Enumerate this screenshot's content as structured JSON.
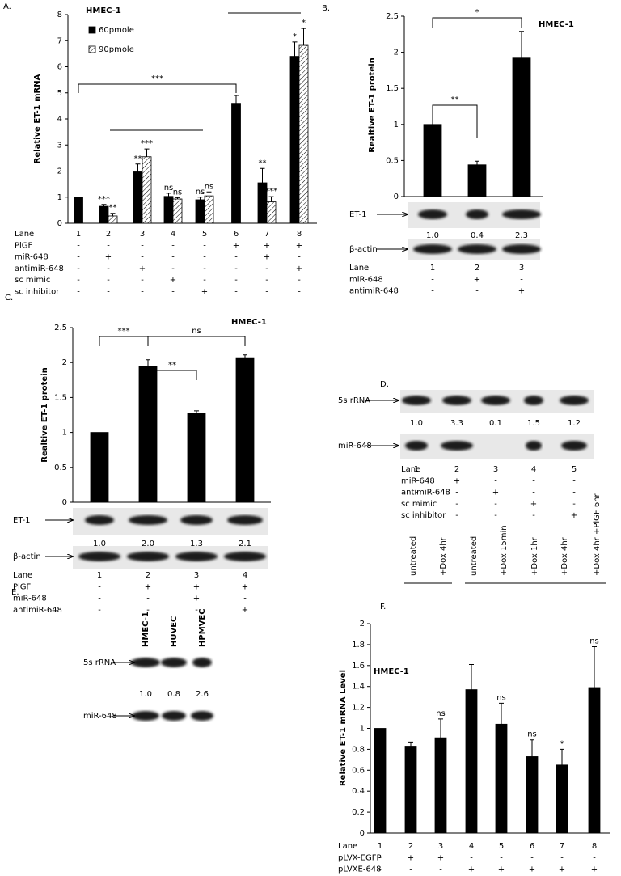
{
  "chart_data": [
    {
      "type": "bar",
      "title": "HMEC-1",
      "ylabel": "Relative ET-1 mRNA",
      "ylim": [
        0,
        8
      ],
      "yticks": [
        0,
        1,
        2,
        3,
        4,
        5,
        6,
        7,
        8
      ],
      "legend": true,
      "series": [
        {
          "name": "60pmole",
          "color": "#000000",
          "values": [
            1,
            0.65,
            1.97,
            1.03,
            0.9,
            4.6,
            1.55,
            6.4
          ],
          "error": [
            null,
            0.07,
            0.3,
            0.12,
            0.1,
            0.3,
            0.55,
            0.55
          ],
          "significance": [
            null,
            "***",
            "**",
            "ns",
            "ns",
            null,
            "**",
            "*"
          ]
        },
        {
          "name": "90pmole",
          "color": "#ffffff",
          "hatch": true,
          "values": [
            null,
            0.28,
            2.55,
            0.93,
            1.05,
            null,
            0.82,
            6.82
          ],
          "error": [
            null,
            0.1,
            0.3,
            0.05,
            0.15,
            null,
            0.2,
            0.65
          ],
          "significance": [
            null,
            "**",
            "***",
            "ns",
            "ns",
            null,
            "***",
            "*"
          ]
        }
      ],
      "annotations": [
        "***"
      ]
    },
    {
      "type": "bar",
      "title": "HMEC-1",
      "ylabel": "Realtive ET-1 protein",
      "ylim": [
        0,
        2.5
      ],
      "yticks": [
        0,
        0.5,
        1,
        1.5,
        2,
        2.5
      ],
      "series": [
        {
          "color": "#000000",
          "values": [
            1,
            0.44,
            1.92
          ],
          "error": [
            null,
            0.05,
            0.37
          ]
        }
      ],
      "annotations": [
        "**",
        "*"
      ]
    },
    {
      "type": "bar",
      "title": "HMEC-1",
      "ylabel": "Realtive ET-1 protein",
      "ylim": [
        0,
        2.5
      ],
      "yticks": [
        0,
        0.5,
        1,
        1.5,
        2,
        2.5
      ],
      "series": [
        {
          "color": "#000000",
          "values": [
            1,
            1.95,
            1.27,
            2.07
          ],
          "error": [
            null,
            0.09,
            0.04,
            0.04
          ]
        }
      ],
      "annotations": [
        "***",
        "ns",
        "**"
      ]
    },
    {
      "type": "bar",
      "title": "HMEC-1",
      "ylabel": "Relative ET-1 mRNA Level",
      "ylim": [
        0,
        2
      ],
      "yticks": [
        0,
        0.2,
        0.4,
        0.6,
        0.8,
        1,
        1.2,
        1.4,
        1.6,
        1.8,
        2
      ],
      "series": [
        {
          "color": "#000000",
          "values": [
            1,
            0.83,
            0.91,
            1.37,
            1.04,
            0.73,
            0.65,
            1.39
          ],
          "error": [
            null,
            0.04,
            0.18,
            0.24,
            0.2,
            0.16,
            0.15,
            0.39
          ],
          "significance": [
            null,
            null,
            "ns",
            null,
            "ns",
            "ns",
            "*",
            "ns"
          ]
        }
      ]
    }
  ],
  "panels": {
    "A": {
      "letter": "A.",
      "lanes": [
        {
          "label": "Lane",
          "cells": [
            "1",
            "2",
            "3",
            "4",
            "5",
            "6",
            "7",
            "8"
          ]
        },
        {
          "label": "PlGF",
          "cells": [
            "-",
            "-",
            "-",
            "-",
            "-",
            "+",
            "+",
            "+"
          ]
        },
        {
          "label": "miR-648",
          "cells": [
            "-",
            "+",
            "-",
            "-",
            "-",
            "-",
            "+",
            "-"
          ]
        },
        {
          "label": "antimiR-648",
          "cells": [
            "-",
            "-",
            "+",
            "-",
            "-",
            "-",
            "-",
            "+"
          ]
        },
        {
          "label": "sc mimic",
          "cells": [
            "-",
            "-",
            "-",
            "+",
            "-",
            "-",
            "-",
            "-"
          ]
        },
        {
          "label": "sc inhibitor",
          "cells": [
            "-",
            "-",
            "-",
            "-",
            "+",
            "-",
            "-",
            "-"
          ]
        }
      ]
    },
    "B": {
      "letter": "B.",
      "blots": [
        {
          "label": "ET-1",
          "ratios": [
            "1.0",
            "0.4",
            "2.3"
          ]
        },
        {
          "label": "β-actin"
        }
      ],
      "lanes": [
        {
          "label": "Lane",
          "cells": [
            "1",
            "2",
            "3"
          ]
        },
        {
          "label": "miR-648",
          "cells": [
            "-",
            "+",
            "-"
          ]
        },
        {
          "label": "antimiR-648",
          "cells": [
            "-",
            "-",
            "+"
          ]
        }
      ]
    },
    "C": {
      "letter": "C.",
      "blots": [
        {
          "label": "ET-1",
          "ratios": [
            "1.0",
            "2.0",
            "1.3",
            "2.1"
          ]
        },
        {
          "label": "β-actin"
        }
      ],
      "lanes": [
        {
          "label": "Lane",
          "cells": [
            "1",
            "2",
            "3",
            "4"
          ]
        },
        {
          "label": "PlGF",
          "cells": [
            "-",
            "+",
            "+",
            "+"
          ]
        },
        {
          "label": "miR-648",
          "cells": [
            "-",
            "-",
            "+",
            "-"
          ]
        },
        {
          "label": "antimiR-648",
          "cells": [
            "-",
            "-",
            "-",
            "+"
          ]
        }
      ]
    },
    "D": {
      "letter": "D.",
      "blots": [
        {
          "label": "5s rRNA",
          "ratios": [
            "1.0",
            "3.3",
            "0.1",
            "1.5",
            "1.2"
          ]
        },
        {
          "label": "miR-648"
        }
      ],
      "lanes": [
        {
          "label": "Lane",
          "cells": [
            "1",
            "2",
            "3",
            "4",
            "5"
          ]
        },
        {
          "label": "miR-648",
          "cells": [
            "-",
            "+",
            "-",
            "-",
            "-"
          ]
        },
        {
          "label": "antimiR-648",
          "cells": [
            "-",
            "-",
            "+",
            "-",
            "-"
          ]
        },
        {
          "label": "sc mimic",
          "cells": [
            "-",
            "-",
            "-",
            "+",
            "-"
          ]
        },
        {
          "label": "sc inhibitor",
          "cells": [
            "-",
            "-",
            "-",
            "-",
            "+"
          ]
        }
      ]
    },
    "E": {
      "letter": "E.",
      "columns": [
        "HMEC-1",
        "HUVEC",
        "HPMVEC"
      ],
      "blots": [
        {
          "label": "5s rRNA",
          "ratios": [
            "1.0",
            "0.8",
            "2.6"
          ]
        },
        {
          "label": "miR-648"
        }
      ]
    },
    "F": {
      "letter": "F.",
      "groups": [
        [
          "untreated",
          "+Dox 4hr"
        ],
        [
          "untreated",
          "+Dox 15min",
          "+Dox 1hr",
          "+Dox 4hr",
          "+Dox 4hr +PlGF 6hr"
        ]
      ],
      "lanes": [
        {
          "label": "Lane",
          "cells": [
            "1",
            "2",
            "3",
            "4",
            "5",
            "6",
            "7",
            "8"
          ]
        },
        {
          "label": "pLVX-EGFP",
          "cells": [
            "-",
            "+",
            "+",
            "-",
            "-",
            "-",
            "-",
            "-"
          ]
        },
        {
          "label": "pLVXE-648",
          "cells": [
            "-",
            "-",
            "-",
            "+",
            "+",
            "+",
            "+",
            "+"
          ]
        }
      ]
    }
  }
}
